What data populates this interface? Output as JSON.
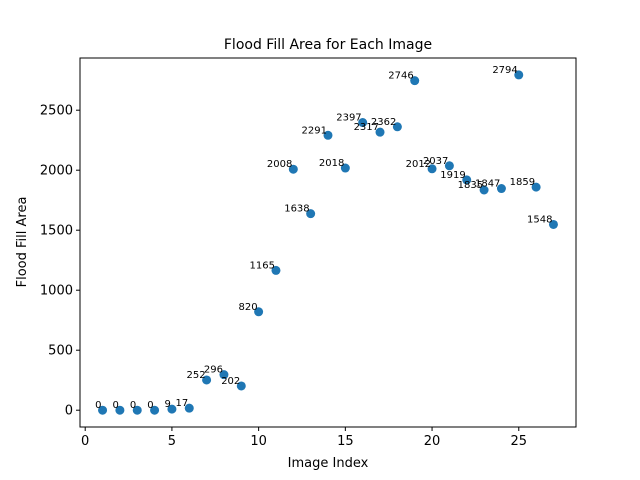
{
  "chart_data": {
    "type": "scatter",
    "title": "Flood Fill Area for Each Image",
    "xlabel": "Image Index",
    "ylabel": "Flood Fill Area",
    "xlim": [
      -0.3,
      28.3
    ],
    "ylim": [
      -140,
      2935
    ],
    "xticks": [
      0,
      5,
      10,
      15,
      20,
      25
    ],
    "yticks": [
      0,
      500,
      1000,
      1500,
      2000,
      2500
    ],
    "grid": false,
    "marker_color": "#1f77b4",
    "x": [
      1,
      2,
      3,
      4,
      5,
      6,
      7,
      8,
      9,
      10,
      11,
      12,
      13,
      14,
      15,
      16,
      17,
      18,
      19,
      20,
      21,
      22,
      23,
      24,
      25,
      26,
      27
    ],
    "y": [
      0,
      0,
      0,
      0,
      9,
      17,
      252,
      296,
      202,
      820,
      1165,
      2008,
      1638,
      2291,
      2018,
      2397,
      2317,
      2362,
      2746,
      2012,
      2037,
      1919,
      1835,
      1847,
      2794,
      1859,
      1548
    ],
    "labels": [
      "0",
      "0",
      "0",
      "0",
      "9",
      "17",
      "252",
      "296",
      "202",
      "820",
      "1165",
      "2008",
      "1638",
      "2291",
      "2018",
      "2397",
      "2317",
      "2362",
      "2746",
      "2012",
      "2037",
      "1919",
      "1835",
      "1847",
      "2794",
      "1859",
      "1548"
    ]
  }
}
